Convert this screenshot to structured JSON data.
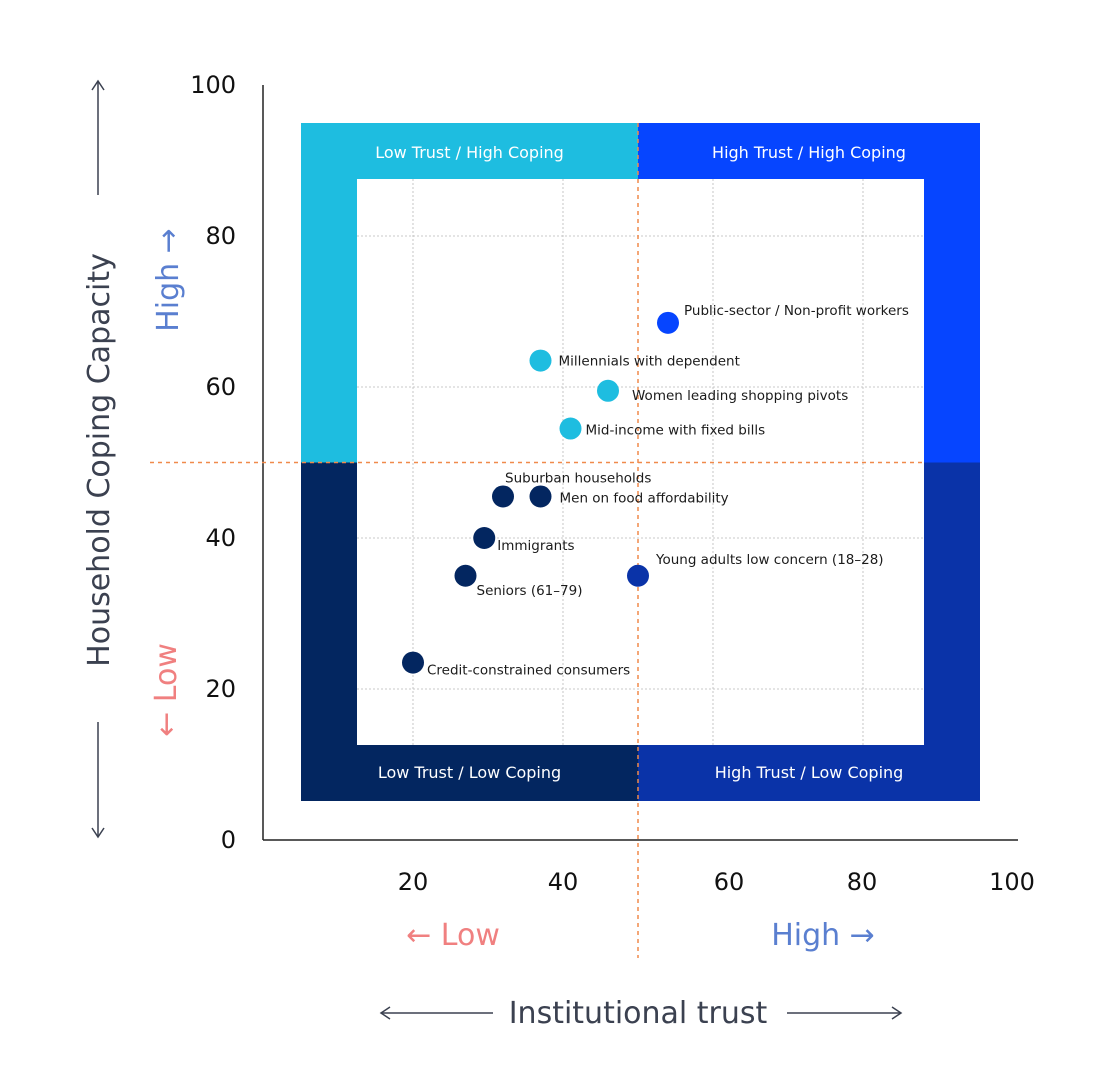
{
  "chart_data": {
    "type": "scatter",
    "xlabel": "Institutional trust",
    "ylabel": "Household Coping Capacity",
    "xlim": [
      0,
      100
    ],
    "ylim": [
      0,
      100
    ],
    "x_ticks": [
      20,
      40,
      60,
      80,
      100
    ],
    "y_ticks": [
      0,
      20,
      40,
      60,
      80,
      100
    ],
    "grid": true,
    "x_direction": {
      "low": "← Low",
      "high": "High →"
    },
    "y_direction": {
      "low": "← Low",
      "high": "High →"
    },
    "threshold": {
      "x": 50,
      "y": 50
    },
    "quadrants": [
      {
        "label": "Low Trust / High Coping",
        "color": "#1ebde0"
      },
      {
        "label": "High Trust / High Coping",
        "color": "#0645ff"
      },
      {
        "label": "Low Trust / Low Coping",
        "color": "#032660"
      },
      {
        "label": "High Trust / Low Coping",
        "color": "#0a33a8"
      }
    ],
    "points": [
      {
        "label": "Public-sector / Non-profit workers",
        "x": 54,
        "y": 68.5,
        "color": "#0645ff"
      },
      {
        "label": "Millennials with dependent",
        "x": 37,
        "y": 63.5,
        "color": "#1ebde0"
      },
      {
        "label": "Women leading shopping pivots",
        "x": 46,
        "y": 59.5,
        "color": "#1ebde0"
      },
      {
        "label": "Mid-income with fixed bills",
        "x": 41,
        "y": 54.5,
        "color": "#1ebde0"
      },
      {
        "label": "Suburban households",
        "x": 32,
        "y": 45.5,
        "color": "#032660"
      },
      {
        "label": "Men on food affordability",
        "x": 37,
        "y": 45.5,
        "color": "#032660"
      },
      {
        "label": "Immigrants",
        "x": 29.5,
        "y": 40,
        "color": "#032660"
      },
      {
        "label": "Young adults low concern (18–28)",
        "x": 50,
        "y": 35,
        "color": "#0a33a8"
      },
      {
        "label": "Seniors (61–79)",
        "x": 27,
        "y": 35,
        "color": "#032660"
      },
      {
        "label": "Credit-constrained consumers",
        "x": 20,
        "y": 23.5,
        "color": "#032660"
      }
    ]
  }
}
